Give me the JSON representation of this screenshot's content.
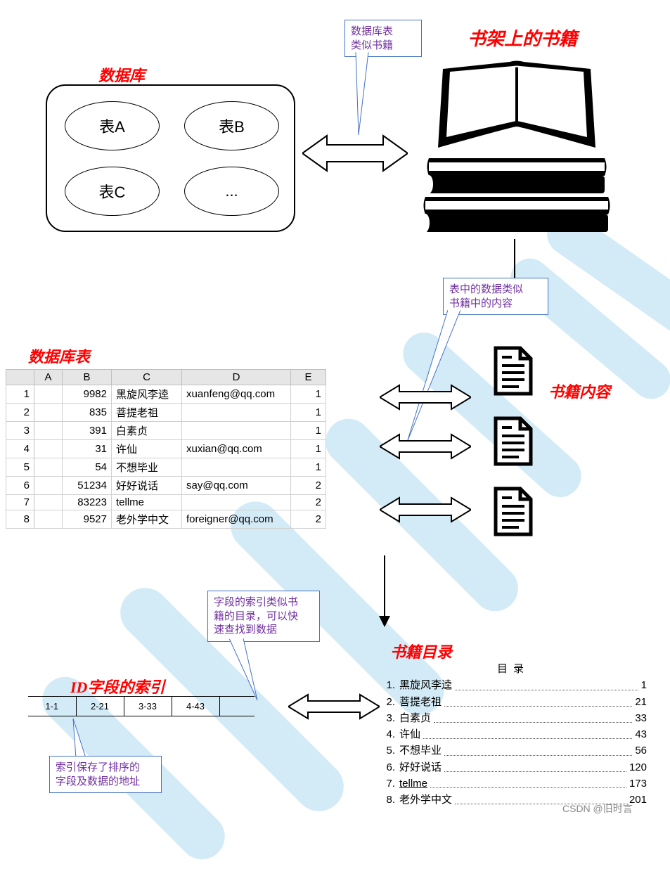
{
  "colors": {
    "red": "#ff0000",
    "callout_border": "#4472c4",
    "callout_text": "#7030a0",
    "watermark": "#a8d8f0",
    "table_header_bg": "#e7e6e6",
    "table_border": "#bfbfbf"
  },
  "titles": {
    "database": "数据库",
    "books_on_shelf": "书架上的书籍",
    "database_table": "数据库表",
    "book_content": "书籍内容",
    "id_index": "ID字段的索引",
    "book_toc": "书籍目录"
  },
  "callouts": {
    "db_like_book": "数据库表\n类似书籍",
    "data_like_content": "表中的数据类似\n书籍中的内容",
    "index_like_toc": "字段的索引类似书\n籍的目录，可以快\n速查找到数据",
    "index_stores": "索引保存了排序的\n字段及数据的地址"
  },
  "db_tables": {
    "a": "表A",
    "b": "表B",
    "c": "表C",
    "d": "..."
  },
  "table": {
    "headers": [
      "A",
      "B",
      "C",
      "D",
      "E"
    ],
    "rows": [
      {
        "n": "1",
        "b": "9982",
        "c": "黑旋风李逵",
        "d": "xuanfeng@qq.com",
        "e": "1"
      },
      {
        "n": "2",
        "b": "835",
        "c": "菩提老祖",
        "d": "",
        "e": "1"
      },
      {
        "n": "3",
        "b": "391",
        "c": "白素贞",
        "d": "",
        "e": "1"
      },
      {
        "n": "4",
        "b": "31",
        "c": "许仙",
        "d": "xuxian@qq.com",
        "e": "1"
      },
      {
        "n": "5",
        "b": "54",
        "c": "不想毕业",
        "d": "",
        "e": "1"
      },
      {
        "n": "6",
        "b": "51234",
        "c": "好好说话",
        "d": "say@qq.com",
        "e": "2"
      },
      {
        "n": "7",
        "b": "83223",
        "c": "tellme",
        "d": "",
        "e": "2"
      },
      {
        "n": "8",
        "b": "9527",
        "c": "老外学中文",
        "d": "foreigner@qq.com",
        "e": "2"
      }
    ]
  },
  "index": {
    "cells": [
      "1-1",
      "2-21",
      "3-33",
      "4-43"
    ]
  },
  "toc": {
    "title": "目录",
    "items": [
      {
        "n": "1.",
        "name": "黑旋风李逵",
        "page": "1"
      },
      {
        "n": "2.",
        "name": "菩提老祖",
        "page": "21"
      },
      {
        "n": "3.",
        "name": "白素贞",
        "page": "33"
      },
      {
        "n": "4.",
        "name": "许仙",
        "page": "43"
      },
      {
        "n": "5.",
        "name": "不想毕业",
        "page": "56"
      },
      {
        "n": "6.",
        "name": "好好说话",
        "page": "120"
      },
      {
        "n": "7.",
        "name": "tellme",
        "page": "173",
        "underline": true
      },
      {
        "n": "8.",
        "name": "老外学中文",
        "page": "201"
      }
    ]
  },
  "watermark_text": "CSDN @旧时言"
}
